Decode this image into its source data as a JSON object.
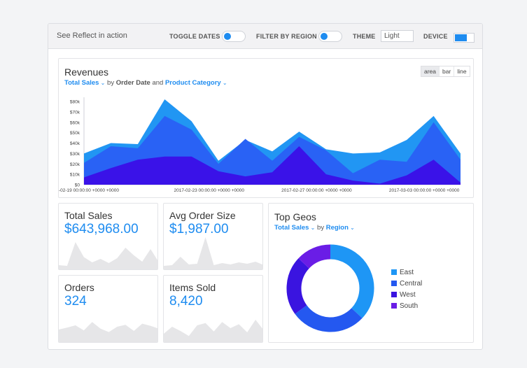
{
  "topbar": {
    "title": "See Reflect in action",
    "toggle_dates_label": "TOGGLE DATES",
    "filter_region_label": "FILTER BY REGION",
    "theme_label": "THEME",
    "theme_value": "Light",
    "device_label": "DEVICE"
  },
  "revenues": {
    "title": "Revenues",
    "metric": "Total Sales",
    "by": "by",
    "dim1": "Order Date",
    "and": "and",
    "dim2": "Product Category",
    "chart_types": [
      "area",
      "bar",
      "line"
    ],
    "active_type": "area"
  },
  "kpis": [
    {
      "label": "Total Sales",
      "value": "$643,968.00"
    },
    {
      "label": "Avg Order Size",
      "value": "$1,987.00"
    },
    {
      "label": "Orders",
      "value": "324"
    },
    {
      "label": "Items Sold",
      "value": "8,420"
    }
  ],
  "geos": {
    "title": "Top Geos",
    "metric": "Total Sales",
    "by": "by",
    "dim": "Region"
  },
  "colors": {
    "accent": "#1e8cf0",
    "series_light": "#2196f3",
    "series_mid": "#2962f5",
    "series_dark": "#3a12e8",
    "east": "#1e96f5",
    "central": "#2458f0",
    "west": "#3a14e0",
    "south": "#6a1de6"
  },
  "chart_data": [
    {
      "type": "area",
      "y_ticks": [
        "$0",
        "$10k",
        "$20k",
        "$30k",
        "$40k",
        "$50k",
        "$60k",
        "$70k",
        "$80k"
      ],
      "ylim": [
        0,
        80000
      ],
      "x_labels": [
        "-02-19 00:00:00 +0000 +0000",
        "2017-02-23 00:00:00 +0000 +0000",
        "2017-02-27 00:00:00 +0000 +0000",
        "2017-03-03 00:00:00 +0000 +0000"
      ],
      "x_label_index": [
        0,
        8,
        16,
        24
      ],
      "series": [
        {
          "values": [
            30000,
            40000,
            39000,
            82000,
            61000,
            23000,
            43000,
            32000,
            51000,
            34000,
            30000,
            31000,
            43000,
            66000,
            30000
          ]
        },
        {
          "values": [
            21000,
            37000,
            35000,
            66000,
            53000,
            20000,
            44000,
            23000,
            46000,
            33000,
            11000,
            24000,
            22000,
            60000,
            24000
          ]
        },
        {
          "values": [
            7000,
            16000,
            24000,
            27000,
            27000,
            13000,
            8000,
            12000,
            37000,
            10000,
            4000,
            1000,
            9000,
            24000,
            2000
          ]
        }
      ]
    },
    {
      "type": "pie",
      "categories": [
        "East",
        "Central",
        "West",
        "South"
      ],
      "values": [
        37,
        28,
        22,
        13
      ]
    }
  ],
  "sparklines": [
    [
      0.12,
      0.1,
      0.78,
      0.35,
      0.2,
      0.3,
      0.18,
      0.32,
      0.62,
      0.4,
      0.22,
      0.58,
      0.2
    ],
    [
      0.1,
      0.12,
      0.36,
      0.14,
      0.16,
      0.92,
      0.12,
      0.18,
      0.14,
      0.2,
      0.16,
      0.22,
      0.12
    ],
    [
      0.45,
      0.52,
      0.6,
      0.42,
      0.72,
      0.48,
      0.36,
      0.55,
      0.62,
      0.4,
      0.66,
      0.58,
      0.48
    ],
    [
      0.3,
      0.55,
      0.4,
      0.22,
      0.6,
      0.68,
      0.38,
      0.72,
      0.5,
      0.64,
      0.35,
      0.8,
      0.42
    ]
  ]
}
